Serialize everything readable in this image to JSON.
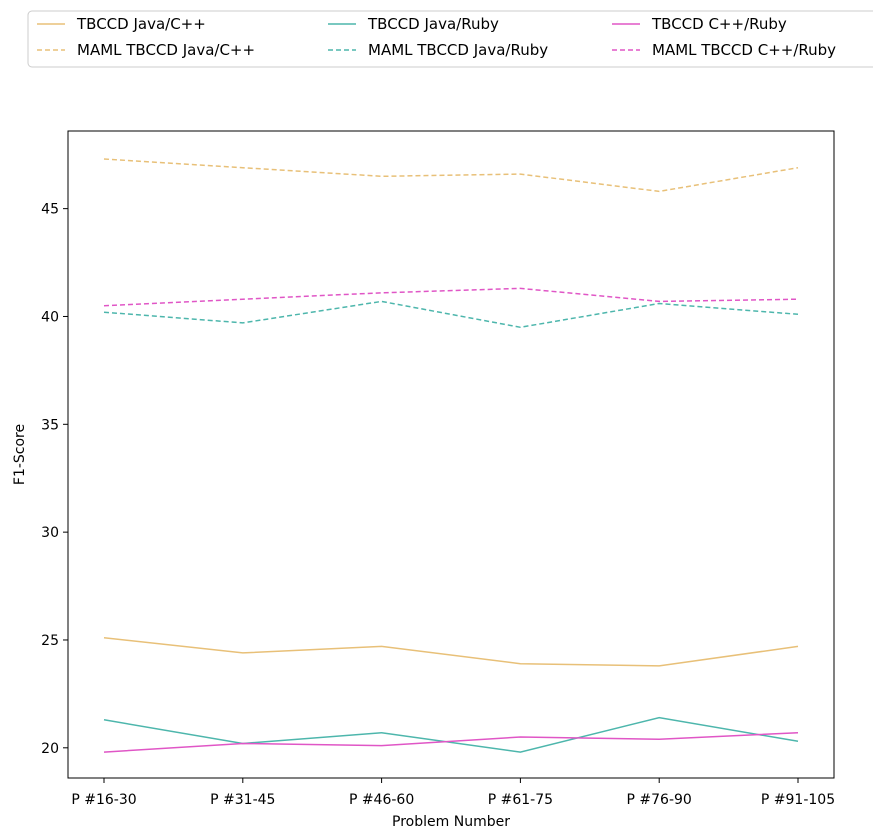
{
  "chart_data": {
    "type": "line",
    "categories": [
      "P #16-30",
      "P #31-45",
      "P #46-60",
      "P #61-75",
      "P #76-90",
      "P #91-105"
    ],
    "xlabel": "Problem Number",
    "ylabel": "F1-Score",
    "ylim": [
      18.6,
      48.6
    ],
    "yticks": [
      20,
      25,
      30,
      35,
      40,
      45
    ],
    "grid": false,
    "legend_position": "top",
    "series": [
      {
        "name": "TBCCD Java/C++",
        "color": "#e8c078",
        "style": "solid",
        "values": [
          25.1,
          24.4,
          24.7,
          23.9,
          23.8,
          24.7
        ]
      },
      {
        "name": "TBCCD Java/Ruby",
        "color": "#4db6ac",
        "style": "solid",
        "values": [
          21.3,
          20.2,
          20.7,
          19.8,
          21.4,
          20.3
        ]
      },
      {
        "name": "TBCCD C++/Ruby",
        "color": "#e056c6",
        "style": "solid",
        "values": [
          19.8,
          20.2,
          20.1,
          20.5,
          20.4,
          20.7
        ]
      },
      {
        "name": "MAML TBCCD Java/C++",
        "color": "#e8c078",
        "style": "dashed",
        "values": [
          47.3,
          46.9,
          46.5,
          46.6,
          45.8,
          46.9
        ]
      },
      {
        "name": "MAML TBCCD Java/Ruby",
        "color": "#4db6ac",
        "style": "dashed",
        "values": [
          40.2,
          39.7,
          40.7,
          39.5,
          40.6,
          40.1
        ]
      },
      {
        "name": "MAML TBCCD C++/Ruby",
        "color": "#e056c6",
        "style": "dashed",
        "values": [
          40.5,
          40.8,
          41.1,
          41.3,
          40.7,
          40.8
        ]
      }
    ]
  }
}
